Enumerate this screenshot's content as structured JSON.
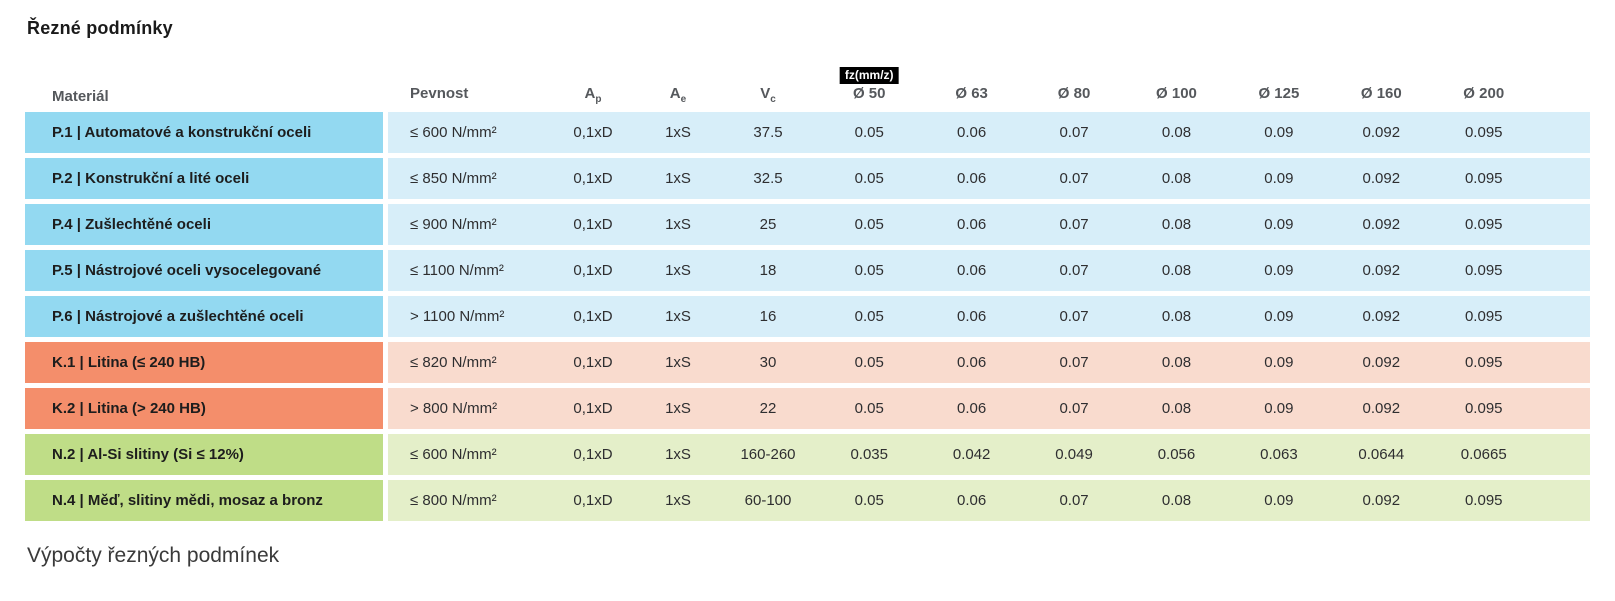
{
  "page": {
    "title": "Řezné podmínky",
    "footer": "Výpočty řezných podmínek"
  },
  "table": {
    "badge": "fz(mm/z)",
    "headers": {
      "material": "Materiál",
      "pevnost": "Pevnost",
      "ap_base": "A",
      "ap_sub": "p",
      "ae_base": "A",
      "ae_sub": "e",
      "vc_base": "V",
      "vc_sub": "c",
      "diameters": [
        "Ø 50",
        "Ø 63",
        "Ø 80",
        "Ø 100",
        "Ø 125",
        "Ø 160",
        "Ø 200"
      ]
    },
    "rows": [
      {
        "group": "blue",
        "material": "P.1 | Automatové a konstrukční oceli",
        "pevnost": "≤ 600 N/mm²",
        "ap": "0,1xD",
        "ae": "1xS",
        "vc": "37.5",
        "fz": [
          "0.05",
          "0.06",
          "0.07",
          "0.08",
          "0.09",
          "0.092",
          "0.095"
        ]
      },
      {
        "group": "blue",
        "material": "P.2 | Konstrukční a lité oceli",
        "pevnost": "≤ 850 N/mm²",
        "ap": "0,1xD",
        "ae": "1xS",
        "vc": "32.5",
        "fz": [
          "0.05",
          "0.06",
          "0.07",
          "0.08",
          "0.09",
          "0.092",
          "0.095"
        ]
      },
      {
        "group": "blue",
        "material": "P.4 | Zušlechtěné oceli",
        "pevnost": "≤ 900 N/mm²",
        "ap": "0,1xD",
        "ae": "1xS",
        "vc": "25",
        "fz": [
          "0.05",
          "0.06",
          "0.07",
          "0.08",
          "0.09",
          "0.092",
          "0.095"
        ]
      },
      {
        "group": "blue",
        "material": "P.5 | Nástrojové oceli vysocelegované",
        "pevnost": "≤ 1100 N/mm²",
        "ap": "0,1xD",
        "ae": "1xS",
        "vc": "18",
        "fz": [
          "0.05",
          "0.06",
          "0.07",
          "0.08",
          "0.09",
          "0.092",
          "0.095"
        ]
      },
      {
        "group": "blue",
        "material": "P.6 | Nástrojové a zušlechtěné oceli",
        "pevnost": "> 1100 N/mm²",
        "ap": "0,1xD",
        "ae": "1xS",
        "vc": "16",
        "fz": [
          "0.05",
          "0.06",
          "0.07",
          "0.08",
          "0.09",
          "0.092",
          "0.095"
        ]
      },
      {
        "group": "orange",
        "material": "K.1 | Litina (≤ 240 HB)",
        "pevnost": "≤ 820 N/mm²",
        "ap": "0,1xD",
        "ae": "1xS",
        "vc": "30",
        "fz": [
          "0.05",
          "0.06",
          "0.07",
          "0.08",
          "0.09",
          "0.092",
          "0.095"
        ]
      },
      {
        "group": "orange",
        "material": "K.2 | Litina (> 240 HB)",
        "pevnost": "> 800 N/mm²",
        "ap": "0,1xD",
        "ae": "1xS",
        "vc": "22",
        "fz": [
          "0.05",
          "0.06",
          "0.07",
          "0.08",
          "0.09",
          "0.092",
          "0.095"
        ]
      },
      {
        "group": "green",
        "material": "N.2 | Al-Si slitiny (Si ≤ 12%)",
        "pevnost": "≤ 600 N/mm²",
        "ap": "0,1xD",
        "ae": "1xS",
        "vc": "160-260",
        "fz": [
          "0.035",
          "0.042",
          "0.049",
          "0.056",
          "0.063",
          "0.0644",
          "0.0665"
        ]
      },
      {
        "group": "green",
        "material": "N.4 | Měď, slitiny mědi, mosaz a bronz",
        "pevnost": "≤ 800 N/mm²",
        "ap": "0,1xD",
        "ae": "1xS",
        "vc": "60-100",
        "fz": [
          "0.05",
          "0.06",
          "0.07",
          "0.08",
          "0.09",
          "0.092",
          "0.095"
        ]
      }
    ]
  },
  "colors": {
    "blue_dark": "#93d9f1",
    "blue_light": "#d7eef9",
    "orange_dark": "#f48e6b",
    "orange_light": "#f9dbce",
    "green_dark": "#bfdd87",
    "green_light": "#e4efc9",
    "badge_bg": "#000000",
    "badge_text": "#ffffff",
    "header_text": "#55585c"
  }
}
